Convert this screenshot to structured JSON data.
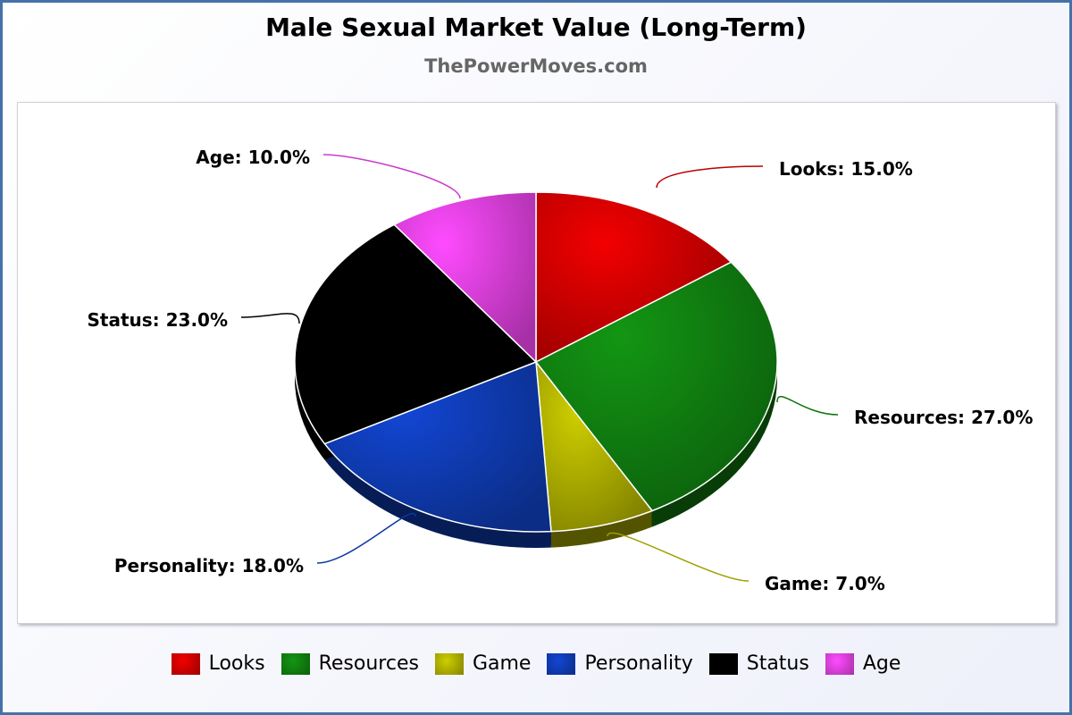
{
  "chart_data": {
    "type": "pie",
    "title": "Male Sexual Market Value (Long-Term)",
    "subtitle": "ThePowerMoves.com",
    "categories": [
      "Looks",
      "Resources",
      "Game",
      "Personality",
      "Status",
      "Age"
    ],
    "values": [
      15.0,
      27.0,
      7.0,
      18.0,
      23.0,
      10.0
    ],
    "labels": [
      "Looks: 15.0%",
      "Resources: 27.0%",
      "Game: 7.0%",
      "Personality: 18.0%",
      "Status: 23.0%",
      "Age: 10.0%"
    ],
    "colors": [
      "#dd0000",
      "#118811",
      "#bbbb00",
      "#1040c0",
      "#000000",
      "#ee44ee"
    ],
    "legend_position": "bottom"
  }
}
